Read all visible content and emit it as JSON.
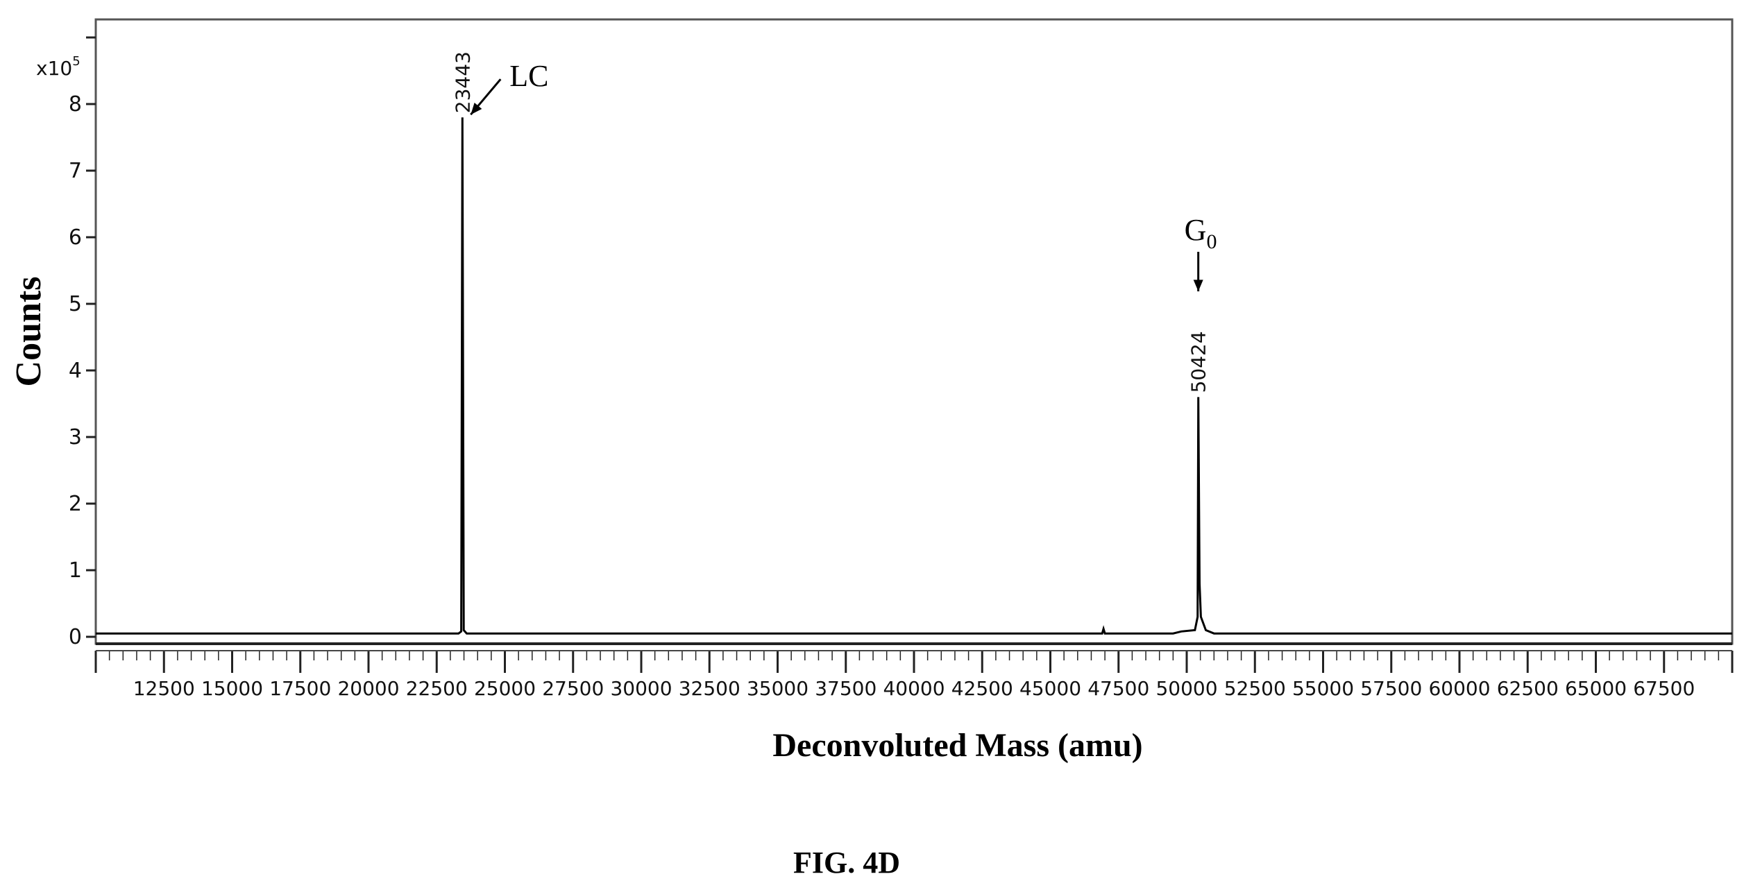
{
  "chart_data": {
    "type": "line",
    "figure_label": "FIG. 4D",
    "title": "",
    "xlabel": "Deconvoluted Mass (amu)",
    "ylabel": "Counts",
    "y_multiplier_label": "x10",
    "y_multiplier_exponent": "5",
    "xlim": [
      10000,
      70000
    ],
    "ylim": [
      0,
      9.6
    ],
    "x_ticks": [
      12500,
      15000,
      17500,
      20000,
      22500,
      25000,
      27500,
      30000,
      32500,
      35000,
      37500,
      40000,
      42500,
      45000,
      47500,
      50000,
      52500,
      55000,
      57500,
      60000,
      62500,
      65000,
      67500
    ],
    "x_tick_labels": [
      "12500",
      "15000",
      "17500",
      "20000",
      "22500",
      "25000",
      "27500",
      "30000",
      "32500",
      "35000",
      "37500",
      "40000",
      "42500",
      "45000",
      "47500",
      "50000",
      "52500",
      "55000",
      "57500",
      "60000",
      "62500",
      "65000",
      "67500"
    ],
    "y_ticks": [
      0,
      1,
      2,
      3,
      4,
      5,
      6,
      7,
      8,
      9
    ],
    "y_tick_labels": [
      "0",
      "1",
      "2",
      "3",
      "4",
      "5",
      "6",
      "7",
      "8",
      ""
    ],
    "grid": false,
    "legend": "none",
    "series": [
      {
        "color": "#000000",
        "points": [
          [
            10000,
            0.05
          ],
          [
            23300,
            0.05
          ],
          [
            23400,
            0.08
          ],
          [
            23443,
            7.8
          ],
          [
            23490,
            0.1
          ],
          [
            23600,
            0.05
          ],
          [
            46900,
            0.05
          ],
          [
            46950,
            0.12
          ],
          [
            47000,
            0.05
          ],
          [
            49500,
            0.05
          ],
          [
            49800,
            0.08
          ],
          [
            50300,
            0.1
          ],
          [
            50400,
            0.3
          ],
          [
            50424,
            3.6
          ],
          [
            50470,
            0.8
          ],
          [
            50520,
            0.3
          ],
          [
            50700,
            0.1
          ],
          [
            51000,
            0.05
          ],
          [
            70000,
            0.05
          ]
        ]
      }
    ],
    "peak_labels": [
      {
        "x": 23443,
        "y": 7.8,
        "text": "23443"
      },
      {
        "x": 50424,
        "y": 3.6,
        "text": "50424"
      }
    ],
    "annotations": [
      {
        "text": "LC",
        "subscript": "",
        "target_x": 23443,
        "target_y": 7.8,
        "arrow": "diagonal"
      },
      {
        "text": "G",
        "subscript": "0",
        "target_x": 50424,
        "target_y": 5.0,
        "arrow": "down"
      }
    ]
  }
}
